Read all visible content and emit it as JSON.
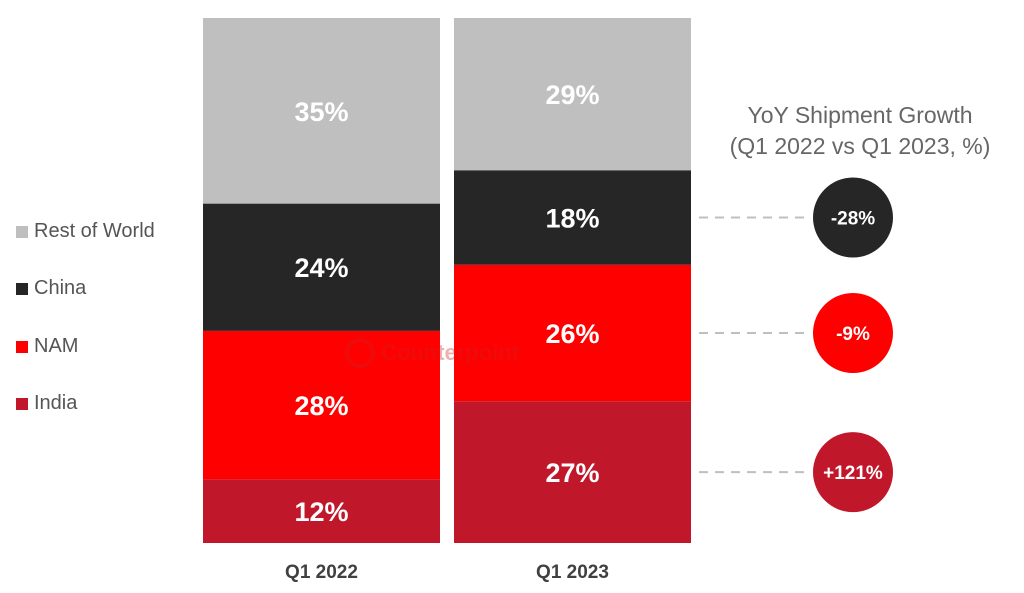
{
  "chart_data": {
    "type": "bar",
    "stacked": true,
    "normalized_percent": true,
    "categories": [
      "Q1 2022",
      "Q1 2023"
    ],
    "series": [
      {
        "name": "India",
        "color": "#C0172B",
        "values": [
          12,
          27
        ]
      },
      {
        "name": "NAM",
        "color": "#FF0000",
        "values": [
          28,
          26
        ]
      },
      {
        "name": "China",
        "color": "#262626",
        "values": [
          24,
          18
        ]
      },
      {
        "name": "Rest of World",
        "color": "#BFBFBF",
        "values": [
          35,
          29
        ]
      }
    ],
    "value_labels": [
      [
        "12%",
        "28%",
        "24%",
        "35%"
      ],
      [
        "27%",
        "26%",
        "18%",
        "29%"
      ]
    ],
    "legend": [
      "Rest of World",
      "China",
      "NAM",
      "India"
    ],
    "legend_colors": [
      "#BFBFBF",
      "#262626",
      "#FF0000",
      "#C0172B"
    ],
    "legend_position": "left",
    "ylim": [
      0,
      100
    ],
    "grid": false
  },
  "growth_panel": {
    "title_line1": "YoY Shipment Growth",
    "title_line2": "(Q1 2022 vs Q1 2023, %)",
    "items": [
      {
        "series": "China",
        "label": "-28%",
        "value": -28,
        "color": "#262626"
      },
      {
        "series": "NAM",
        "label": "-9%",
        "value": -9,
        "color": "#FF0000"
      },
      {
        "series": "India",
        "label": "+121%",
        "value": 121,
        "color": "#C0172B"
      }
    ]
  },
  "watermark": {
    "brand": "Counterpoint"
  }
}
